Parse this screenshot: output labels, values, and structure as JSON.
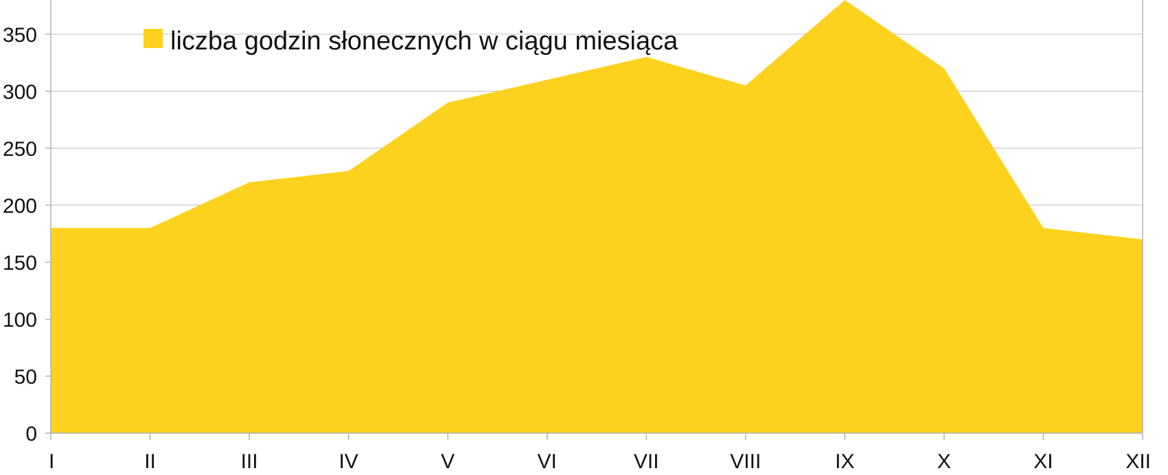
{
  "chart_data": {
    "type": "area",
    "title": "",
    "xlabel": "",
    "ylabel": "",
    "categories": [
      "I",
      "II",
      "III",
      "IV",
      "V",
      "VI",
      "VII",
      "VIII",
      "IX",
      "X",
      "XI",
      "XII"
    ],
    "series": [
      {
        "name": "liczba godzin słonecznych w ciągu miesiąca",
        "values": [
          180,
          180,
          220,
          230,
          290,
          310,
          330,
          305,
          380,
          320,
          180,
          170
        ],
        "color": "#fcd21e"
      }
    ],
    "ylim": [
      0,
      380
    ],
    "yticks": [
      0,
      50,
      100,
      150,
      200,
      250,
      300,
      350
    ],
    "grid": true,
    "legend_position": "top-left",
    "colors": {
      "grid": "#c8c8c8",
      "axis": "#b0b0b0",
      "text": "#111111"
    }
  }
}
